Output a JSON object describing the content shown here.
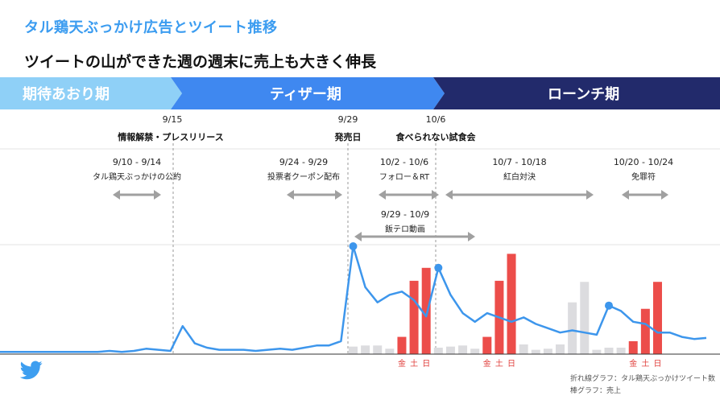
{
  "title": "タル鶏天ぶっかけ広告とツイート推移",
  "subtitle": "ツイートの山ができた週の週末に売上も大きく伸長",
  "phases": [
    {
      "label": "期待あおり期",
      "color": "#8fd0f7"
    },
    {
      "label": "ティザー期",
      "color": "#3f88f0"
    },
    {
      "label": "ローンチ期",
      "color": "#222a6b"
    }
  ],
  "events": [
    {
      "date": "9/15",
      "label": "情報解禁・プレスリリース"
    },
    {
      "date": "9/29",
      "label": "発売日"
    },
    {
      "date": "10/6",
      "label": "食べられない試食会"
    }
  ],
  "campaigns": [
    {
      "range": "9/10 - 9/14",
      "label": "タル鶏天ぶっかけの公約"
    },
    {
      "range": "9/24 - 9/29",
      "label": "投票者クーポン配布"
    },
    {
      "range": "10/2 - 10/6",
      "label": "フォロー＆RT"
    },
    {
      "range": "10/7 - 10/18",
      "label": "紅白対決"
    },
    {
      "range": "10/20 - 10/24",
      "label": "免罪符"
    },
    {
      "range": "9/29 - 10/9",
      "label": "飯テロ動画"
    }
  ],
  "weekend_labels": [
    "金",
    "土",
    "日"
  ],
  "legend": {
    "line": "折れ線グラフ：タル鶏天ぶっかけツイート数",
    "bar": "棒グラフ：売上"
  },
  "chart_data": {
    "type": "line+bar",
    "x_start": "9/1",
    "x_end": "10/28",
    "line_series": {
      "name": "タル鶏天ぶっかけツイート数",
      "color": "#3d96ec",
      "values": [
        2,
        2,
        2,
        2,
        2,
        2,
        2,
        2,
        2,
        3,
        2,
        3,
        5,
        4,
        3,
        26,
        10,
        6,
        4,
        4,
        4,
        3,
        4,
        5,
        4,
        6,
        8,
        8,
        12,
        100,
        62,
        48,
        55,
        58,
        50,
        35,
        80,
        55,
        38,
        30,
        38,
        34,
        30,
        34,
        28,
        24,
        20,
        22,
        20,
        18,
        45,
        40,
        30,
        28,
        20,
        20,
        16,
        14,
        15
      ]
    },
    "bar_series": {
      "name": "売上",
      "values": [
        null,
        null,
        null,
        null,
        null,
        null,
        null,
        null,
        null,
        null,
        null,
        null,
        null,
        null,
        null,
        null,
        null,
        null,
        null,
        null,
        null,
        null,
        null,
        null,
        null,
        null,
        null,
        null,
        null,
        7,
        8,
        8,
        5,
        16,
        68,
        80,
        6,
        7,
        8,
        5,
        16,
        68,
        93,
        9,
        4,
        5,
        9,
        48,
        67,
        4,
        6,
        6,
        12,
        42,
        67,
        null,
        null,
        null,
        null
      ],
      "highlight": [
        33,
        34,
        35,
        40,
        41,
        42,
        52,
        53,
        54
      ],
      "highlight_color": "#ec4d4a",
      "normal_color": "#dcdcdf"
    }
  }
}
